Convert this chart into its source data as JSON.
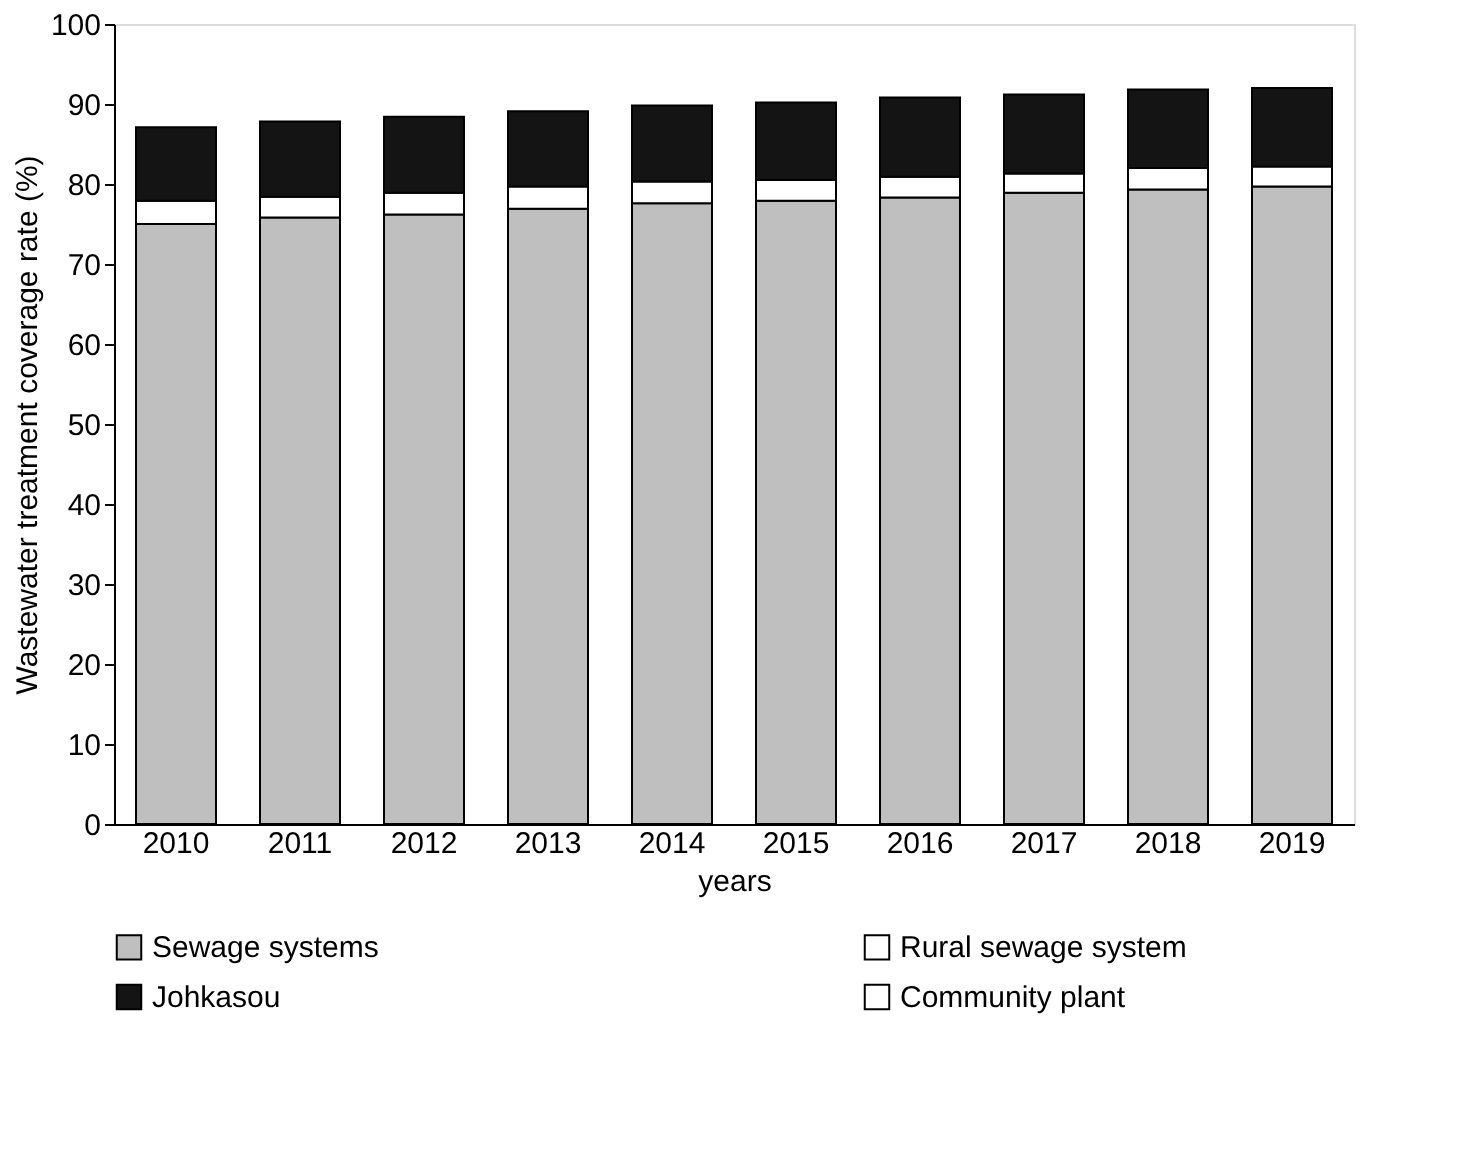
{
  "chart_data": {
    "type": "bar",
    "stacked": true,
    "xlabel": "years",
    "ylabel": "Wastewater treatment coverage rate (%)",
    "categories": [
      "2010",
      "2011",
      "2012",
      "2013",
      "2014",
      "2015",
      "2016",
      "2017",
      "2018",
      "2019"
    ],
    "series": [
      {
        "name": "Sewage systems",
        "color": "#bfbfbf",
        "values": [
          75.0,
          75.8,
          76.2,
          76.9,
          77.6,
          77.9,
          78.3,
          78.9,
          79.3,
          79.7
        ]
      },
      {
        "name": "Rural sewage system",
        "color": "#ffffff",
        "values": [
          2.9,
          2.6,
          2.7,
          2.8,
          2.7,
          2.6,
          2.6,
          2.4,
          2.7,
          2.5
        ]
      },
      {
        "name": "Johkasou",
        "color": "#141414",
        "values": [
          9.2,
          9.4,
          9.5,
          9.4,
          9.5,
          9.7,
          9.9,
          9.9,
          9.8,
          9.8
        ]
      },
      {
        "name": "Community plant",
        "color": "#ffffff",
        "values": [
          null,
          null,
          null,
          null,
          null,
          null,
          null,
          null,
          null,
          null
        ]
      }
    ],
    "ylim": [
      0,
      100
    ],
    "yticks": [
      0,
      10,
      20,
      30,
      40,
      50,
      60,
      70,
      80,
      90,
      100
    ],
    "grid": false,
    "legend": "bottom"
  }
}
